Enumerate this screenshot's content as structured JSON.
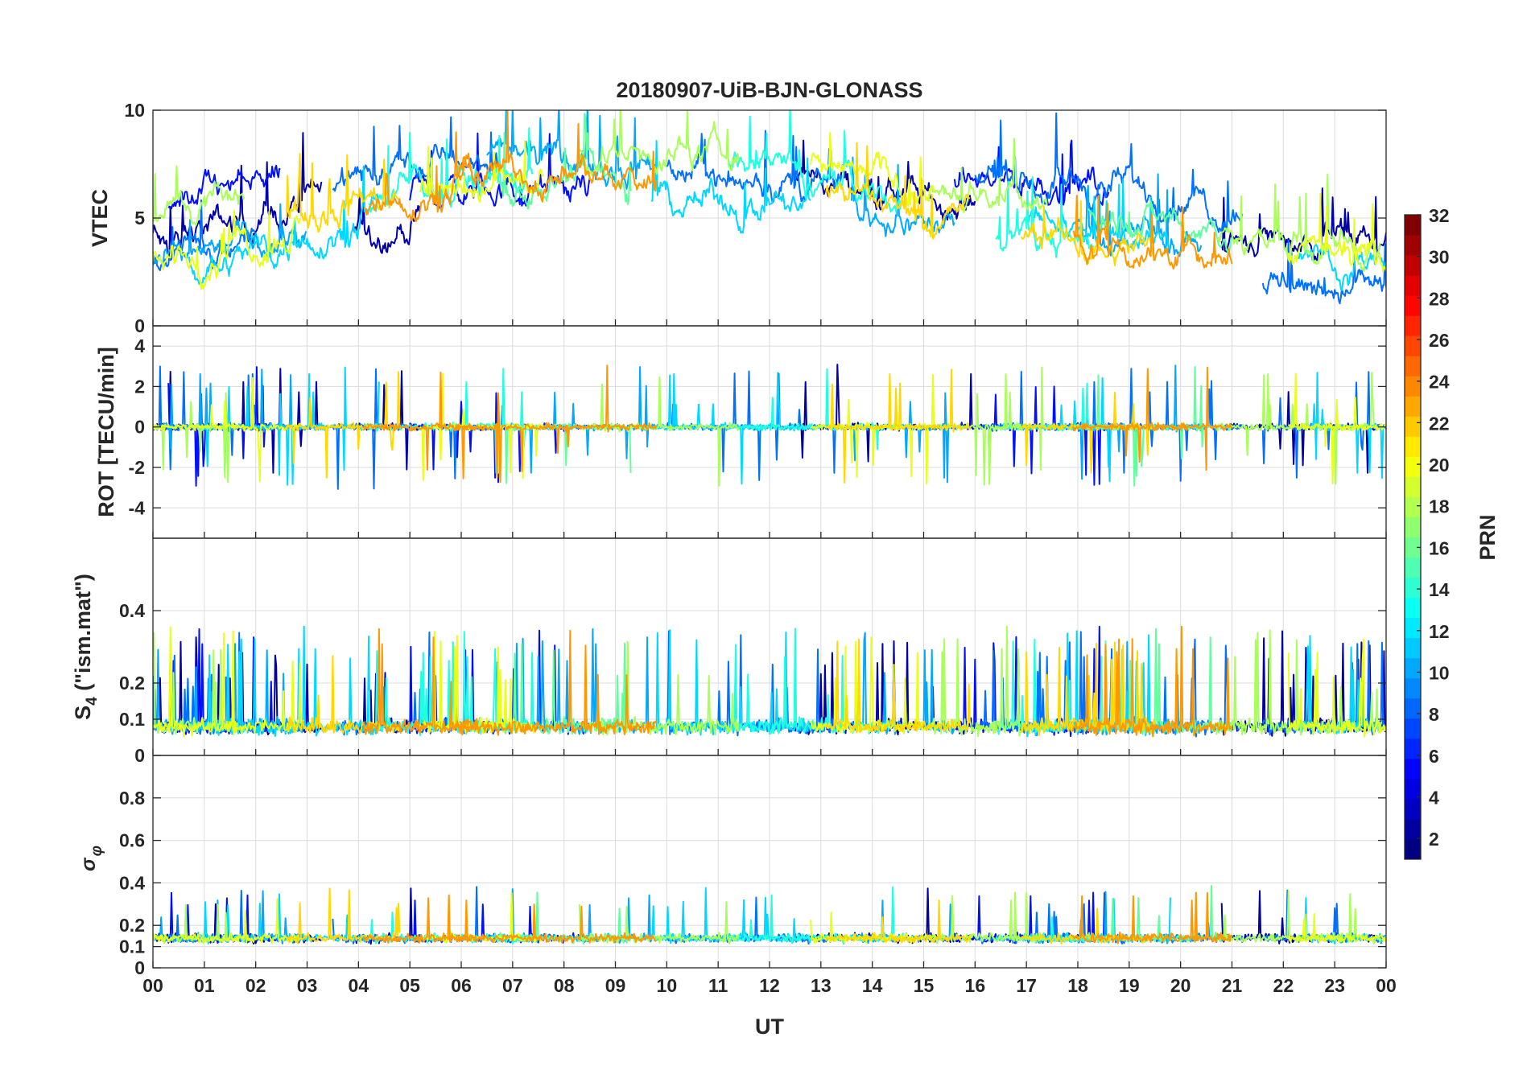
{
  "chart_data": {
    "type": "line",
    "title": "20180907-UiB-BJN-GLONASS",
    "xlabel": "UT",
    "xlim": [
      0,
      24
    ],
    "x_tick_labels": [
      "00",
      "01",
      "02",
      "03",
      "04",
      "05",
      "06",
      "07",
      "08",
      "09",
      "10",
      "11",
      "12",
      "13",
      "14",
      "15",
      "16",
      "17",
      "18",
      "19",
      "20",
      "21",
      "22",
      "23",
      "00"
    ],
    "panels": [
      {
        "id": "vtec",
        "ylabel": "VTEC",
        "ylim": [
          0,
          10
        ],
        "y_ticks": [
          0,
          5,
          10
        ],
        "y_tick_labels": [
          "0",
          "5",
          "10"
        ],
        "center": 5.5,
        "spread": 1.8,
        "spike_prob": 0.03,
        "spike_amp": 2.2,
        "envelope": [
          [
            0,
            3.8
          ],
          [
            2,
            4.8
          ],
          [
            4,
            6.2
          ],
          [
            6,
            7.2
          ],
          [
            9,
            7.0
          ],
          [
            12,
            6.8
          ],
          [
            15,
            5.2
          ],
          [
            17,
            5.2
          ],
          [
            19,
            4.6
          ],
          [
            21,
            3.8
          ],
          [
            24,
            3.4
          ]
        ]
      },
      {
        "id": "rot",
        "ylabel": "ROT [TECU/min]",
        "ylim": [
          -5.5,
          5
        ],
        "y_ticks": [
          -4,
          -2,
          0,
          2,
          4
        ],
        "y_tick_labels": [
          "-4",
          "-2",
          "0",
          "2",
          "4"
        ],
        "center": 0,
        "spread": 0.25,
        "spike_prob": 0.04,
        "spike_amp": 2.5,
        "envelope": [
          [
            0,
            0
          ],
          [
            24,
            0
          ]
        ]
      },
      {
        "id": "s4",
        "ylabel": "S4 (\"ism.mat\")",
        "ylabel_main": "S",
        "ylabel_sub": "4",
        "ylabel_rest": " (\"ism.mat\")",
        "ylim": [
          0,
          0.6
        ],
        "y_ticks": [
          0,
          0.1,
          0.2,
          0.4
        ],
        "y_tick_labels": [
          "0",
          "0.1",
          "0.2",
          "0.4"
        ],
        "center": 0.08,
        "spread": 0.03,
        "spike_prob": 0.05,
        "spike_amp": 0.22,
        "envelope": [
          [
            0,
            0.08
          ],
          [
            24,
            0.08
          ]
        ]
      },
      {
        "id": "sigma",
        "ylabel": "σφ",
        "ylabel_main": "σ",
        "ylabel_sub": "φ",
        "ylim": [
          0,
          1
        ],
        "y_ticks": [
          0,
          0.1,
          0.2,
          0.4,
          0.6,
          0.8
        ],
        "y_tick_labels": [
          "0",
          "0.1",
          "0.2",
          "0.4",
          "0.6",
          "0.8"
        ],
        "center": 0.14,
        "spread": 0.03,
        "spike_prob": 0.02,
        "spike_amp": 0.2,
        "envelope": [
          [
            0,
            0.14
          ],
          [
            24,
            0.14
          ]
        ]
      }
    ],
    "colorbar": {
      "label": "PRN",
      "range": [
        1,
        32
      ],
      "ticks": [
        2,
        4,
        6,
        8,
        10,
        12,
        14,
        16,
        18,
        20,
        22,
        24,
        26,
        28,
        30,
        32
      ],
      "tick_labels": [
        "2",
        "4",
        "6",
        "8",
        "10",
        "12",
        "14",
        "16",
        "18",
        "20",
        "22",
        "24",
        "26",
        "28",
        "30",
        "32"
      ],
      "colormap": "jet"
    },
    "series": [
      {
        "prn": 2,
        "color": "#0000a8",
        "intervals": [
          [
            0,
            3.3
          ],
          [
            3.9,
            5.2
          ],
          [
            12.5,
            16.0
          ],
          [
            20.8,
            24
          ]
        ]
      },
      {
        "prn": 4,
        "color": "#0010ff",
        "intervals": [
          [
            0.3,
            2.5
          ],
          [
            5.0,
            8.5
          ],
          [
            15.6,
            18.6
          ]
        ]
      },
      {
        "prn": 7,
        "color": "#0070ff",
        "intervals": [
          [
            0,
            2.0
          ],
          [
            3.5,
            6.8
          ],
          [
            10.0,
            13.4
          ],
          [
            16.0,
            21.2
          ],
          [
            21.6,
            24
          ]
        ]
      },
      {
        "prn": 9,
        "color": "#00a8ff",
        "intervals": [
          [
            0,
            3.0
          ],
          [
            6.5,
            9.8
          ],
          [
            13.6,
            15.6
          ],
          [
            18.0,
            20.4
          ]
        ]
      },
      {
        "prn": 11,
        "color": "#00d8ff",
        "intervals": [
          [
            0.7,
            4.4
          ],
          [
            9.7,
            12.8
          ],
          [
            17.0,
            19.8
          ],
          [
            22.3,
            24
          ]
        ]
      },
      {
        "prn": 13,
        "color": "#20ffe0",
        "intervals": [
          [
            4.2,
            7.4
          ],
          [
            11.2,
            14.6
          ],
          [
            16.4,
            18.3
          ]
        ]
      },
      {
        "prn": 15,
        "color": "#60ff9c",
        "intervals": [
          [
            6.7,
            9.3
          ],
          [
            18.2,
            21.0
          ]
        ]
      },
      {
        "prn": 17,
        "color": "#a8ff58",
        "intervals": [
          [
            0,
            1.8
          ],
          [
            8.3,
            11.4
          ],
          [
            15.1,
            17.4
          ],
          [
            20.7,
            23.9
          ]
        ]
      },
      {
        "prn": 19,
        "color": "#e8ff18",
        "intervals": [
          [
            0,
            2.9
          ],
          [
            5.2,
            7.6
          ],
          [
            12.8,
            15.2
          ],
          [
            22.1,
            24
          ]
        ]
      },
      {
        "prn": 21,
        "color": "#ffd800",
        "intervals": [
          [
            2.6,
            4.8
          ],
          [
            13.1,
            15.9
          ],
          [
            16.9,
            19.5
          ]
        ]
      },
      {
        "prn": 23,
        "color": "#ff9800",
        "intervals": [
          [
            4.1,
            6.3
          ],
          [
            5.9,
            9.8
          ],
          [
            17.9,
            21.0
          ]
        ]
      }
    ]
  }
}
